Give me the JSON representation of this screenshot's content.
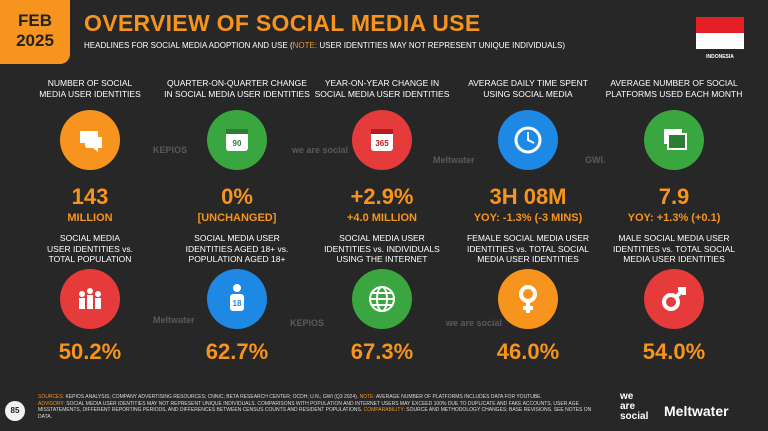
{
  "header": {
    "date_month": "FEB",
    "date_year": "2025",
    "title": "OVERVIEW OF SOCIAL MEDIA USE",
    "subtitle_start": "HEADLINES FOR SOCIAL MEDIA ADOPTION AND USE (",
    "subtitle_note": "NOTE:",
    "subtitle_end": " USER IDENTITIES MAY NOT REPRESENT UNIQUE INDIVIDUALS)",
    "country": "INDONESIA"
  },
  "top_row": [
    {
      "label": [
        "NUMBER OF SOCIAL",
        "MEDIA USER IDENTITIES"
      ],
      "value": "143",
      "sub": "MILLION"
    },
    {
      "label": [
        "QUARTER-ON-QUARTER CHANGE",
        "IN SOCIAL MEDIA USER IDENTITIES"
      ],
      "icon_text": "90",
      "value": "0%",
      "sub": "[UNCHANGED]"
    },
    {
      "label": [
        "YEAR-ON-YEAR CHANGE IN",
        "SOCIAL MEDIA USER IDENTITIES"
      ],
      "icon_text": "365",
      "value": "+2.9%",
      "sub": "+4.0 MILLION"
    },
    {
      "label": [
        "AVERAGE DAILY TIME SPENT",
        "USING SOCIAL MEDIA"
      ],
      "value": "3H 08M",
      "sub": "YOY: -1.3% (-3 MINS)"
    },
    {
      "label": [
        "AVERAGE NUMBER OF SOCIAL",
        "PLATFORMS USED EACH MONTH"
      ],
      "value": "7.9",
      "sub": "YOY: +1.3% (+0.1)"
    }
  ],
  "bottom_row": [
    {
      "label": [
        "SOCIAL MEDIA",
        "USER IDENTITIES vs.",
        "TOTAL POPULATION"
      ],
      "value": "50.2%"
    },
    {
      "label": [
        "SOCIAL MEDIA USER",
        "IDENTITIES AGED 18+ vs.",
        "POPULATION AGED 18+"
      ],
      "icon_text": "18",
      "value": "62.7%"
    },
    {
      "label": [
        "SOCIAL MEDIA USER",
        "IDENTITIES vs. INDIVIDUALS",
        "USING THE INTERNET"
      ],
      "value": "67.3%"
    },
    {
      "label": [
        "FEMALE SOCIAL MEDIA USER",
        "IDENTITIES vs. TOTAL SOCIAL",
        "MEDIA USER IDENTITIES"
      ],
      "value": "46.0%"
    },
    {
      "label": [
        "MALE SOCIAL MEDIA USER",
        "IDENTITIES vs. TOTAL SOCIAL",
        "MEDIA USER IDENTITIES"
      ],
      "value": "54.0%"
    }
  ],
  "watermarks": [
    "KEPIOS",
    "we are social",
    "Meltwater",
    "GWI.",
    "Meltwater",
    "KEPIOS",
    "we are social"
  ],
  "footer": {
    "page": "85",
    "sources_label": "SOURCES:",
    "sources": " KEPIOS ANALYSIS; COMPANY ADVERTISING RESOURCES; CNNIC; BETA RESEARCH CENTER; OCDH; U.N.; GWI (Q3 2024). ",
    "note_label": "NOTE:",
    "note": " AVERAGE NUMBER OF PLATFORMS INCLUDES DATA FOR YOUTUBE.",
    "advisory_label": "ADVISORY:",
    "advisory": " SOCIAL MEDIA USER IDENTITIES MAY NOT REPRESENT UNIQUE INDIVIDUALS. COMPARISONS WITH POPULATION AND INTERNET USERS MAY EXCEED 100% DUE TO DUPLICATE AND FAKE ACCOUNTS, USER AGE MISSTATEMENTS, DIFFERENT REPORTING PERIODS, AND DIFFERENCES BETWEEN CENSUS COUNTS AND RESIDENT POPULATIONS. ",
    "comparability_label": "COMPARABILITY:",
    "comparability": " SOURCE AND METHODOLOGY CHANGES; BASE REVISIONS. SEE NOTES ON DATA.",
    "logo_was": [
      "we",
      "are",
      "social"
    ],
    "logo_meltwater": "Meltwater"
  }
}
